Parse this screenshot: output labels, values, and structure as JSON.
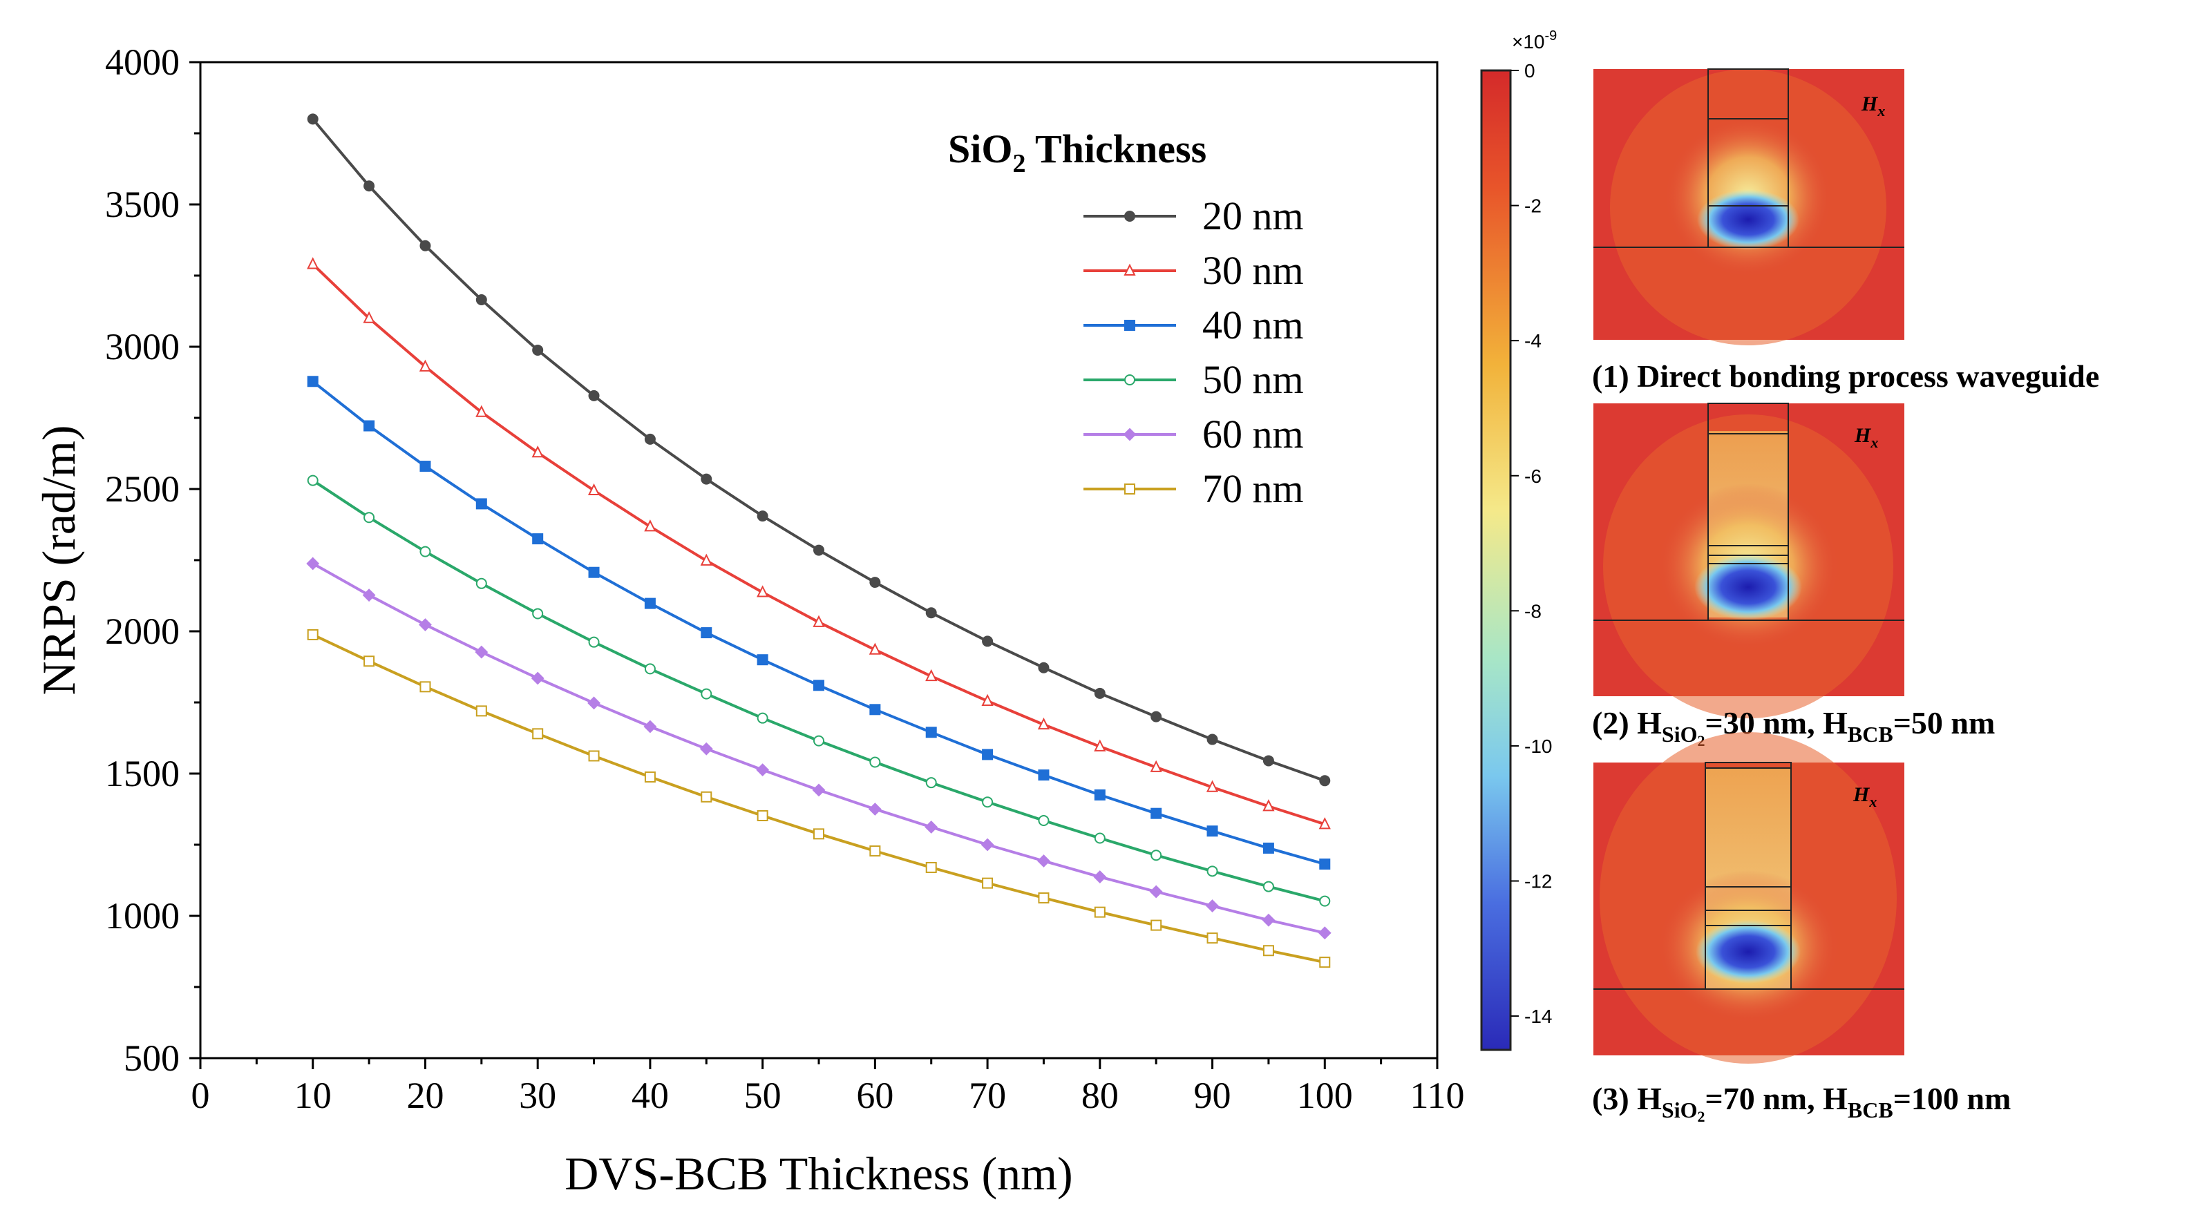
{
  "chart_data": {
    "type": "line",
    "xlabel": "DVS-BCB Thickness (nm)",
    "ylabel": "NRPS (rad/m)",
    "xlim": [
      0,
      110
    ],
    "ylim": [
      500,
      4000
    ],
    "x_ticks": [
      0,
      10,
      20,
      30,
      40,
      50,
      60,
      70,
      80,
      90,
      100,
      110
    ],
    "y_ticks": [
      500,
      1000,
      1500,
      2000,
      2500,
      3000,
      3500,
      4000
    ],
    "legend_title": "SiO",
    "legend_title_sub": "2",
    "legend_title_rest": " Thickness",
    "legend_position": "top-right",
    "x": [
      10,
      15,
      20,
      25,
      30,
      35,
      40,
      45,
      50,
      55,
      60,
      65,
      70,
      75,
      80,
      85,
      90,
      95,
      100
    ],
    "series": [
      {
        "name": "20 nm",
        "color": "#4a4a4a",
        "marker": "circle-filled",
        "values": [
          3800,
          3565,
          3355,
          3165,
          2988,
          2828,
          2675,
          2535,
          2405,
          2285,
          2172,
          2065,
          1965,
          1872,
          1782,
          1700,
          1620,
          1545,
          1475
        ]
      },
      {
        "name": "30 nm",
        "color": "#e8403a",
        "marker": "triangle-open",
        "values": [
          3290,
          3100,
          2930,
          2770,
          2628,
          2495,
          2368,
          2248,
          2137,
          2032,
          1935,
          1842,
          1755,
          1672,
          1595,
          1522,
          1452,
          1385,
          1322
        ]
      },
      {
        "name": "40 nm",
        "color": "#1f6fd6",
        "marker": "square-filled",
        "values": [
          2878,
          2722,
          2580,
          2448,
          2325,
          2207,
          2098,
          1995,
          1900,
          1810,
          1725,
          1645,
          1567,
          1495,
          1425,
          1360,
          1298,
          1238,
          1182
        ]
      },
      {
        "name": "50 nm",
        "color": "#2aa86a",
        "marker": "circle-open",
        "values": [
          2530,
          2400,
          2280,
          2168,
          2062,
          1962,
          1868,
          1780,
          1695,
          1615,
          1540,
          1468,
          1400,
          1335,
          1273,
          1213,
          1157,
          1103,
          1052
        ]
      },
      {
        "name": "60 nm",
        "color": "#b57ee6",
        "marker": "diamond-filled",
        "values": [
          2238,
          2127,
          2023,
          1927,
          1835,
          1748,
          1665,
          1587,
          1513,
          1442,
          1375,
          1312,
          1250,
          1193,
          1137,
          1085,
          1035,
          985,
          940
        ]
      },
      {
        "name": "70 nm",
        "color": "#c9a020",
        "marker": "square-open",
        "values": [
          1988,
          1895,
          1805,
          1720,
          1640,
          1562,
          1488,
          1418,
          1352,
          1288,
          1228,
          1170,
          1115,
          1063,
          1013,
          967,
          922,
          878,
          837
        ]
      }
    ]
  },
  "colorbar": {
    "exponent_base": "×10",
    "exponent_power": "-9",
    "min": -14.5,
    "max": 0,
    "ticks": [
      0,
      -2,
      -4,
      -6,
      -8,
      -10,
      -12,
      -14
    ],
    "tick_labels": [
      "0",
      "-2",
      "-4",
      "-6",
      "-8",
      "-10",
      "-12",
      "-14"
    ]
  },
  "panels": [
    {
      "field_label": "H",
      "field_sub": "x",
      "caption": "(1) Direct bonding process waveguide"
    },
    {
      "field_label": "H",
      "field_sub": "x",
      "caption_parts": [
        "(2) H",
        "SiO",
        "2",
        "=30 nm, H",
        "BCB",
        "=50 nm"
      ]
    },
    {
      "field_label": "H",
      "field_sub": "x",
      "caption_parts": [
        "(3) H",
        "SiO",
        "2",
        "=70 nm, H",
        "BCB",
        "=100 nm"
      ]
    }
  ]
}
